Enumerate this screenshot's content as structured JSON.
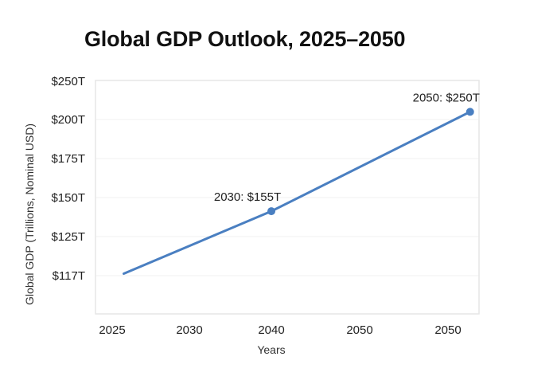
{
  "chart_data": {
    "type": "line",
    "title": "Global GDP Outlook, 2025–2050",
    "xlabel": "Years",
    "ylabel": "Global GDP (Trillions, Nominal USD)",
    "x_tick_labels": [
      "2025",
      "2030",
      "2040",
      "2050",
      "2050"
    ],
    "y_tick_labels": [
      "$117T",
      "$125T",
      "$150T",
      "$175T",
      "$200T",
      "$250T"
    ],
    "grid": true,
    "series": [
      {
        "name": "Global GDP",
        "color": "#4a7fc1",
        "points": [
          {
            "x_index": 0.15,
            "y_index": 0.05,
            "label": null
          },
          {
            "x_index": 2.0,
            "y_index": 1.65,
            "label": "2030: $155T"
          },
          {
            "x_index": 4.25,
            "y_index": 4.2,
            "label": "2050: $250T"
          }
        ]
      }
    ],
    "annotations": [
      "2030: $155T",
      "2050: $250T"
    ]
  }
}
